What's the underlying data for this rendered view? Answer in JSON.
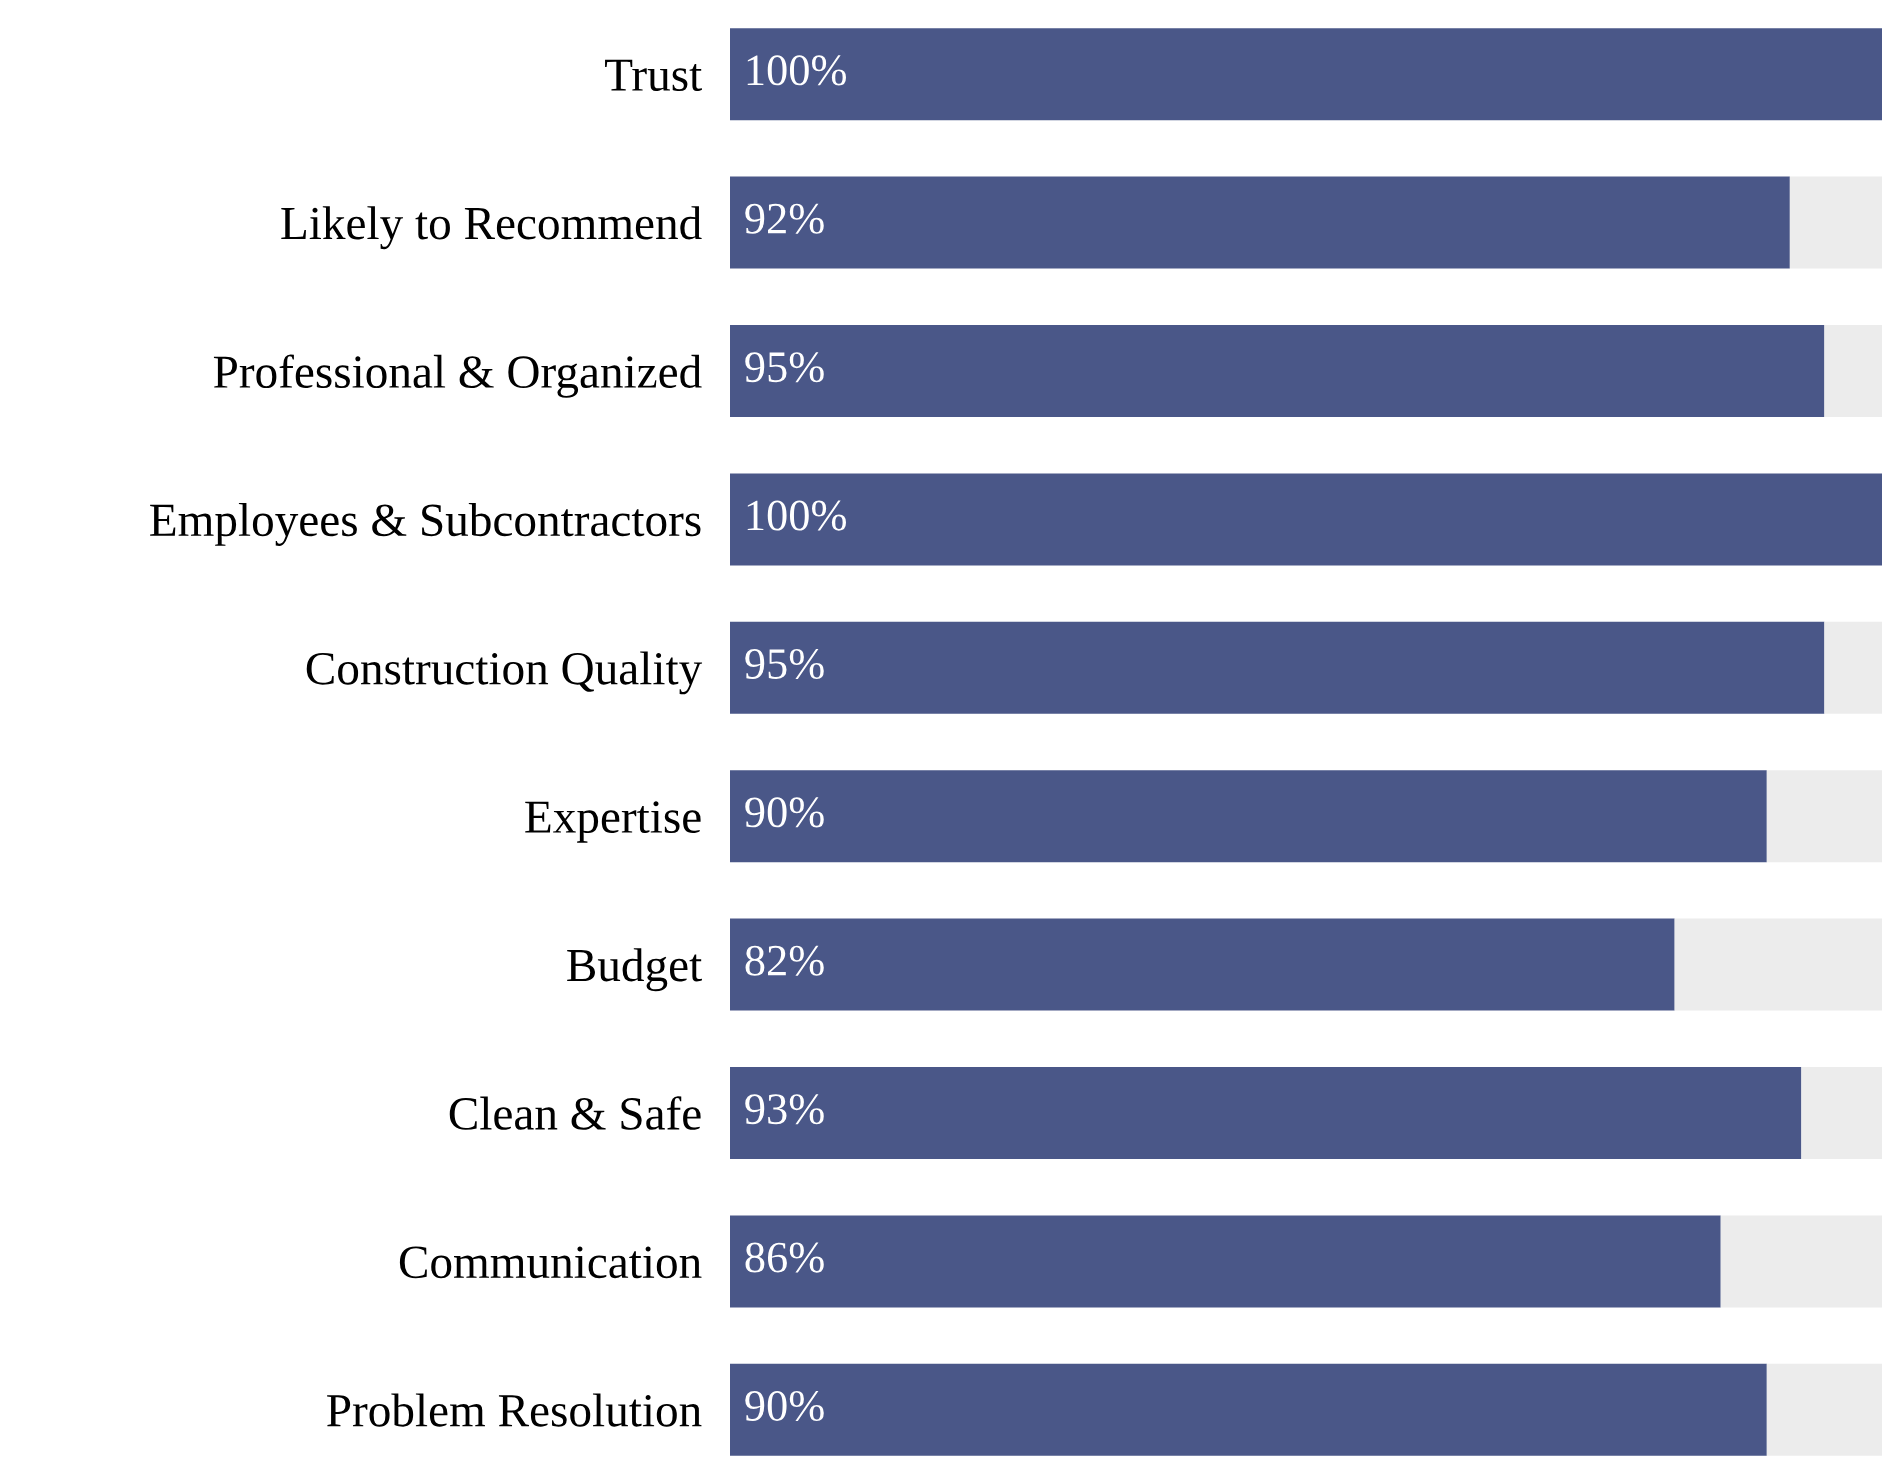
{
  "chart_data": {
    "type": "bar",
    "orientation": "horizontal",
    "stacked": true,
    "categories": [
      "Trust",
      "Likely to Recommend",
      "Professional & Organized",
      "Employees & Subcontractors",
      "Construction Quality",
      "Expertise",
      "Budget",
      "Clean & Safe",
      "Communication",
      "Problem Resolution"
    ],
    "series": [
      {
        "color": "#4a5788",
        "values": [
          100,
          92,
          95,
          100,
          95,
          90,
          82,
          93,
          86,
          90
        ],
        "value_labels": [
          "100%",
          "92%",
          "95%",
          "100%",
          "95%",
          "90%",
          "82%",
          "93%",
          "86%",
          "90%"
        ]
      },
      {
        "color": "#ececec",
        "values": [
          0,
          8,
          5,
          0,
          5,
          10,
          18,
          7,
          14,
          10
        ]
      }
    ],
    "xlim": [
      0,
      100
    ],
    "tick_labels": "y",
    "grid": false,
    "legend": false
  }
}
